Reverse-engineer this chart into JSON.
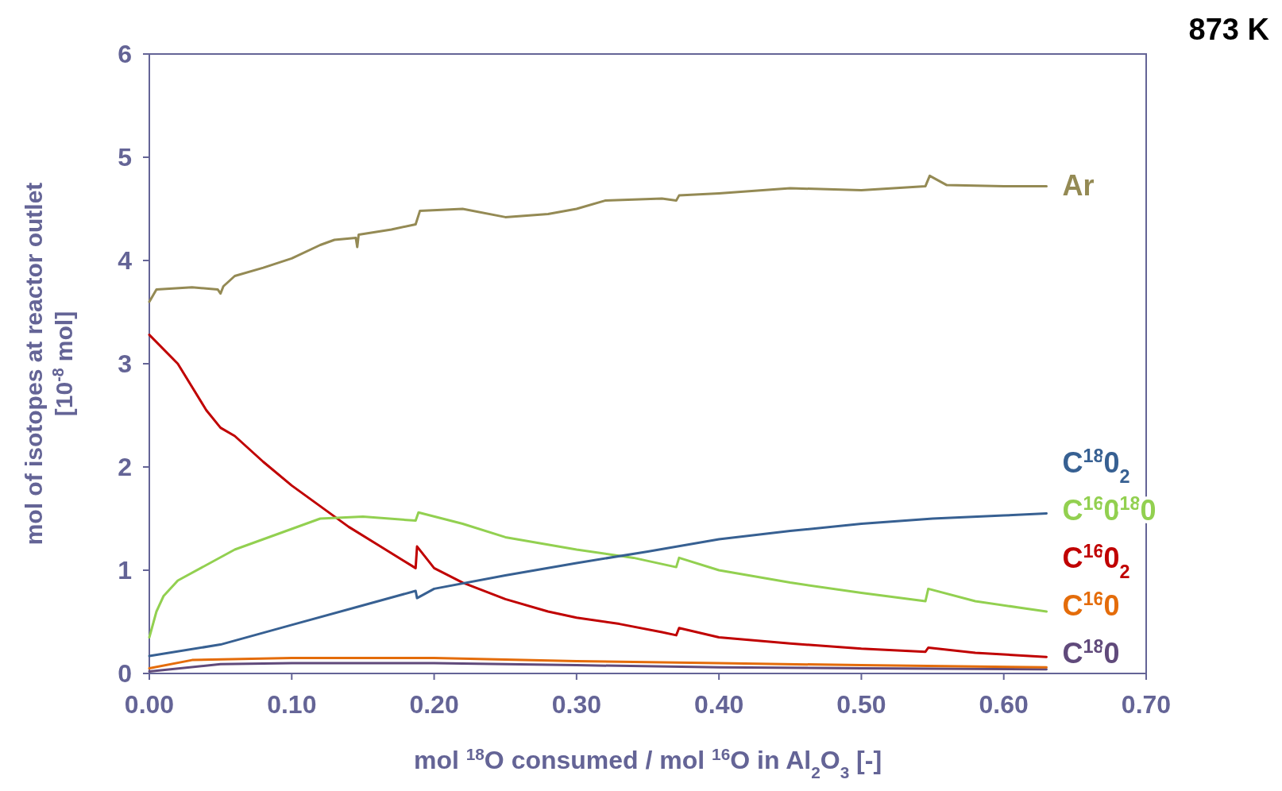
{
  "chart_data": {
    "type": "line",
    "title": "873 K",
    "xlabel": "mol $^{18}$O consumed / mol $^{16}$O in Al$_{2}$O$_{3}$ [-]",
    "ylabel": "mol of isotopes at reactor outlet\n[10$^{-8}$ mol]",
    "xlim": [
      0,
      0.7
    ],
    "xticks": [
      {
        "value": 0,
        "label": "0.00"
      },
      {
        "value": 0.1,
        "label": "0.10"
      },
      {
        "value": 0.2,
        "label": "0.20"
      },
      {
        "value": 0.3,
        "label": "0.30"
      },
      {
        "value": 0.4,
        "label": "0.40"
      },
      {
        "value": 0.5,
        "label": "0.50"
      },
      {
        "value": 0.6,
        "label": "0.60"
      },
      {
        "value": 0.7,
        "label": "0.70"
      }
    ],
    "ylim": [
      0,
      6
    ],
    "yticks": [
      0,
      1,
      2,
      3,
      4,
      5,
      6
    ],
    "grid": false,
    "marker": "none",
    "line_style": "solid",
    "series": [
      {
        "name": "Ar",
        "color": "#948a54",
        "x": [
          0,
          0.005,
          0.03,
          0.048,
          0.05,
          0.052,
          0.06,
          0.08,
          0.1,
          0.12,
          0.13,
          0.145,
          0.146,
          0.147,
          0.17,
          0.187,
          0.19,
          0.22,
          0.25,
          0.28,
          0.3,
          0.32,
          0.36,
          0.37,
          0.372,
          0.4,
          0.45,
          0.5,
          0.545,
          0.548,
          0.56,
          0.6,
          0.63
        ],
        "values": [
          3.6,
          3.72,
          3.74,
          3.72,
          3.68,
          3.75,
          3.85,
          3.93,
          4.02,
          4.15,
          4.2,
          4.22,
          4.13,
          4.25,
          4.3,
          4.35,
          4.48,
          4.5,
          4.42,
          4.45,
          4.5,
          4.58,
          4.6,
          4.58,
          4.63,
          4.65,
          4.7,
          4.68,
          4.72,
          4.82,
          4.73,
          4.72,
          4.72
        ]
      },
      {
        "name": "C$^{16}$0$_{2}$",
        "color": "#c00000",
        "x": [
          0,
          0.02,
          0.04,
          0.05,
          0.06,
          0.08,
          0.1,
          0.12,
          0.14,
          0.16,
          0.187,
          0.188,
          0.2,
          0.22,
          0.25,
          0.28,
          0.3,
          0.33,
          0.36,
          0.37,
          0.372,
          0.4,
          0.45,
          0.5,
          0.545,
          0.547,
          0.58,
          0.63
        ],
        "values": [
          3.28,
          3.0,
          2.55,
          2.38,
          2.3,
          2.05,
          1.82,
          1.62,
          1.42,
          1.25,
          1.02,
          1.23,
          1.02,
          0.88,
          0.72,
          0.6,
          0.54,
          0.48,
          0.4,
          0.37,
          0.44,
          0.35,
          0.29,
          0.24,
          0.21,
          0.25,
          0.2,
          0.16
        ]
      },
      {
        "name": "C$^{16}$0$^{18}$0",
        "color": "#92d050",
        "x": [
          0,
          0.005,
          0.01,
          0.02,
          0.04,
          0.06,
          0.08,
          0.1,
          0.12,
          0.15,
          0.187,
          0.189,
          0.22,
          0.25,
          0.3,
          0.34,
          0.37,
          0.372,
          0.4,
          0.45,
          0.5,
          0.545,
          0.547,
          0.58,
          0.63
        ],
        "values": [
          0.35,
          0.6,
          0.75,
          0.9,
          1.05,
          1.2,
          1.3,
          1.4,
          1.5,
          1.52,
          1.48,
          1.56,
          1.45,
          1.32,
          1.2,
          1.12,
          1.03,
          1.12,
          1.0,
          0.88,
          0.78,
          0.7,
          0.82,
          0.7,
          0.6
        ]
      },
      {
        "name": "C$^{18}$0$_{2}$",
        "color": "#376092",
        "x": [
          0,
          0.05,
          0.1,
          0.15,
          0.187,
          0.188,
          0.2,
          0.25,
          0.3,
          0.35,
          0.4,
          0.45,
          0.5,
          0.55,
          0.6,
          0.63
        ],
        "values": [
          0.17,
          0.28,
          0.47,
          0.66,
          0.8,
          0.73,
          0.82,
          0.95,
          1.07,
          1.18,
          1.3,
          1.38,
          1.45,
          1.5,
          1.53,
          1.55
        ]
      },
      {
        "name": "C$^{18}$0",
        "color": "#604a7b",
        "x": [
          0,
          0.05,
          0.1,
          0.2,
          0.3,
          0.4,
          0.5,
          0.63
        ],
        "values": [
          0.02,
          0.09,
          0.1,
          0.1,
          0.08,
          0.06,
          0.05,
          0.04
        ]
      },
      {
        "name": "C$^{16}$0",
        "color": "#e46c0a",
        "x": [
          0,
          0.03,
          0.1,
          0.2,
          0.3,
          0.4,
          0.5,
          0.63
        ],
        "values": [
          0.05,
          0.13,
          0.15,
          0.15,
          0.12,
          0.1,
          0.08,
          0.06
        ]
      }
    ]
  }
}
